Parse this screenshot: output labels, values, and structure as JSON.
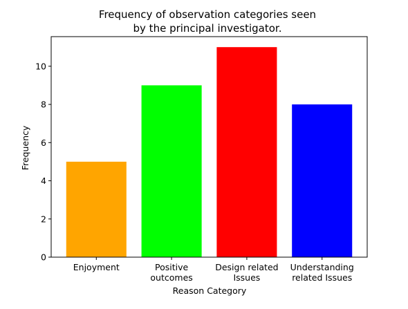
{
  "chart_data": {
    "type": "bar",
    "title_lines": [
      "Frequency of observation categories seen",
      "by the principal investigator."
    ],
    "xlabel": "Reason Category",
    "ylabel": "Frequency",
    "categories": [
      [
        "Enjoyment"
      ],
      [
        "Positive",
        "outcomes"
      ],
      [
        "Design related",
        "Issues"
      ],
      [
        "Understanding",
        "related Issues"
      ]
    ],
    "values": [
      5,
      9,
      11,
      8
    ],
    "colors": [
      "#FFA500",
      "#00FF00",
      "#FF0000",
      "#0000FF"
    ],
    "ylim": [
      0,
      11.55
    ],
    "yticks": [
      0,
      2,
      4,
      6,
      8,
      10
    ],
    "grid": false
  }
}
